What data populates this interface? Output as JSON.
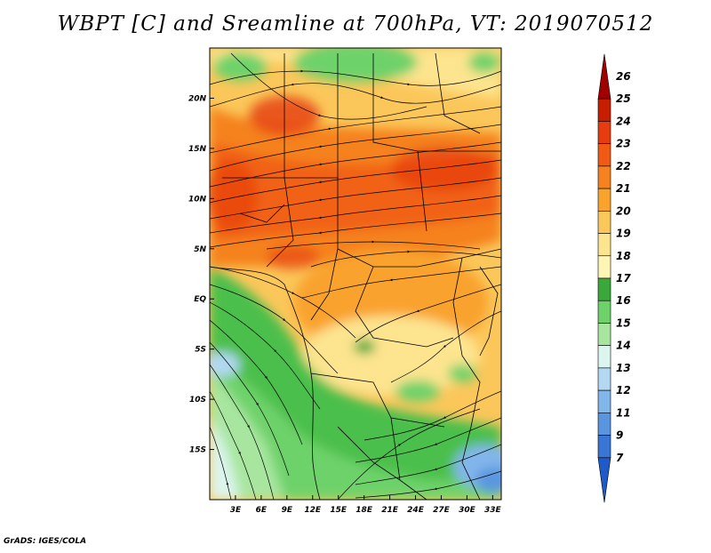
{
  "title": "WBPT [C] and Sreamline at 700hPa, VT: 2019070512",
  "credit": "GrADS: IGES/COLA",
  "map": {
    "variable": "Wet-bulb potential temperature",
    "units": "C",
    "level": "700hPa",
    "valid_time": "2019070512",
    "lon_range": [
      0,
      34
    ],
    "lat_range": [
      -20,
      25
    ],
    "lon_ticks": [
      "3E",
      "6E",
      "9E",
      "12E",
      "15E",
      "18E",
      "21E",
      "24E",
      "27E",
      "30E",
      "33E"
    ],
    "lon_tick_values": [
      3,
      6,
      9,
      12,
      15,
      18,
      21,
      24,
      27,
      30,
      33
    ],
    "lat_ticks": [
      "20N",
      "15N",
      "10N",
      "5N",
      "EQ",
      "5S",
      "10S",
      "15S"
    ],
    "lat_tick_values": [
      20,
      15,
      10,
      5,
      0,
      -5,
      -10,
      -15
    ]
  },
  "colorbar": {
    "labels": [
      "26",
      "25",
      "24",
      "23",
      "22",
      "21",
      "20",
      "19",
      "18",
      "17",
      "16",
      "15",
      "14",
      "13",
      "12",
      "11",
      "9",
      "7"
    ],
    "colors": [
      "#a00000",
      "#c81e00",
      "#e63c0f",
      "#f05a14",
      "#f5821e",
      "#f9a32d",
      "#fbc75a",
      "#fde48f",
      "#fff6b6",
      "#3aa83a",
      "#6ed26a",
      "#a8e6a0",
      "#dcf5ee",
      "#b2d8f2",
      "#82b6ea",
      "#5a96e0",
      "#3a76d6",
      "#1e5ac8"
    ]
  },
  "palette": {
    "ocean_green": "#4cbf4c",
    "land_orange": "#f5a03c"
  }
}
